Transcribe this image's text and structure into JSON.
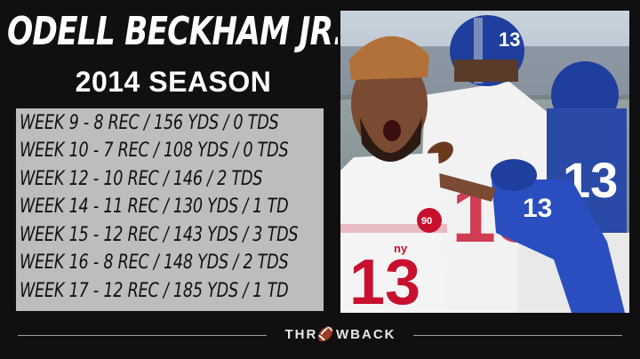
{
  "header": {
    "title": "ODELL BECKHAM JR.",
    "subtitle": "2014 SEASON"
  },
  "stats": [
    "WEEK 9 - 8 REC / 156 YDS / 0 TDS",
    "WEEK 10 - 7 REC / 108 YDS / 0 TDS",
    "WEEK 12 - 10 REC / 146 / 2 TDS",
    "WEEK 14 - 11 REC / 130 YDS / 1 TD",
    "WEEK 15 - 12 REC / 143 YDS / 3 TDS",
    "WEEK 16 - 8 REC / 148 YDS / 2 TDS",
    "WEEK 17 - 12 REC / 185 YDS / 1 TD"
  ],
  "photo": {
    "jersey_number": "13",
    "team_mark": "ny",
    "patch_number": "90"
  },
  "footer": {
    "brand": "THR🏈WBACK"
  },
  "colors": {
    "background": "#101010",
    "stats_box": "#bdbdbd",
    "giants_blue": "#1f3f9e",
    "giants_red": "#c8102e"
  }
}
